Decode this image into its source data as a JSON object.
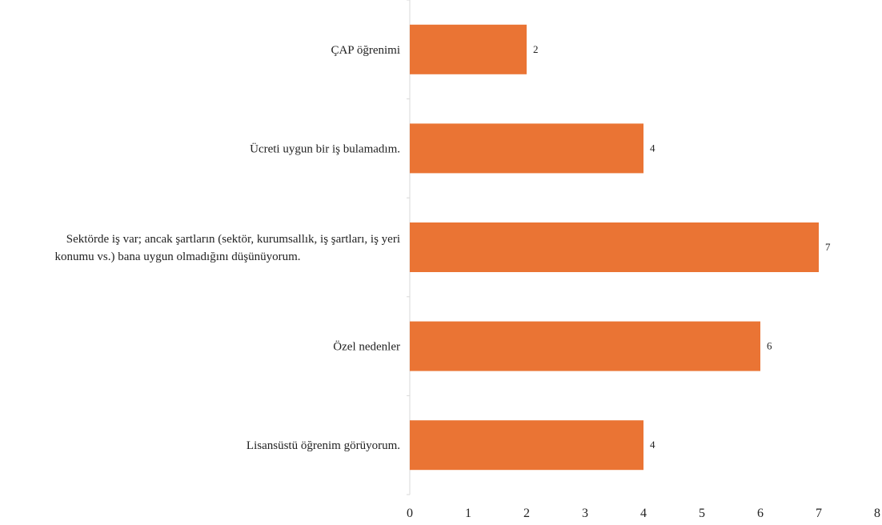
{
  "chart_data": {
    "type": "bar",
    "orientation": "horizontal",
    "title": "",
    "xlabel": "",
    "ylabel": "",
    "categories": [
      [
        "ÇAP öğrenimi"
      ],
      [
        "Ücreti uygun bir iş bulamadım."
      ],
      [
        "Sektörde iş var; ancak şartların (sektör, kurumsallık, iş şartları, iş yeri",
        "konumu vs.) bana uygun olmadığını düşünüyorum."
      ],
      [
        "Özel nedenler"
      ],
      [
        "Lisansüstü öğrenim görüyorum."
      ]
    ],
    "values": [
      2,
      4,
      7,
      6,
      4
    ],
    "xlim": [
      0,
      8
    ],
    "xticks": [
      "0",
      "1",
      "2",
      "3",
      "4",
      "5",
      "6",
      "7",
      "8"
    ],
    "grid": false,
    "legend": "none",
    "bar_color": "#ea7434",
    "axis_color": "#d9d9d9"
  }
}
